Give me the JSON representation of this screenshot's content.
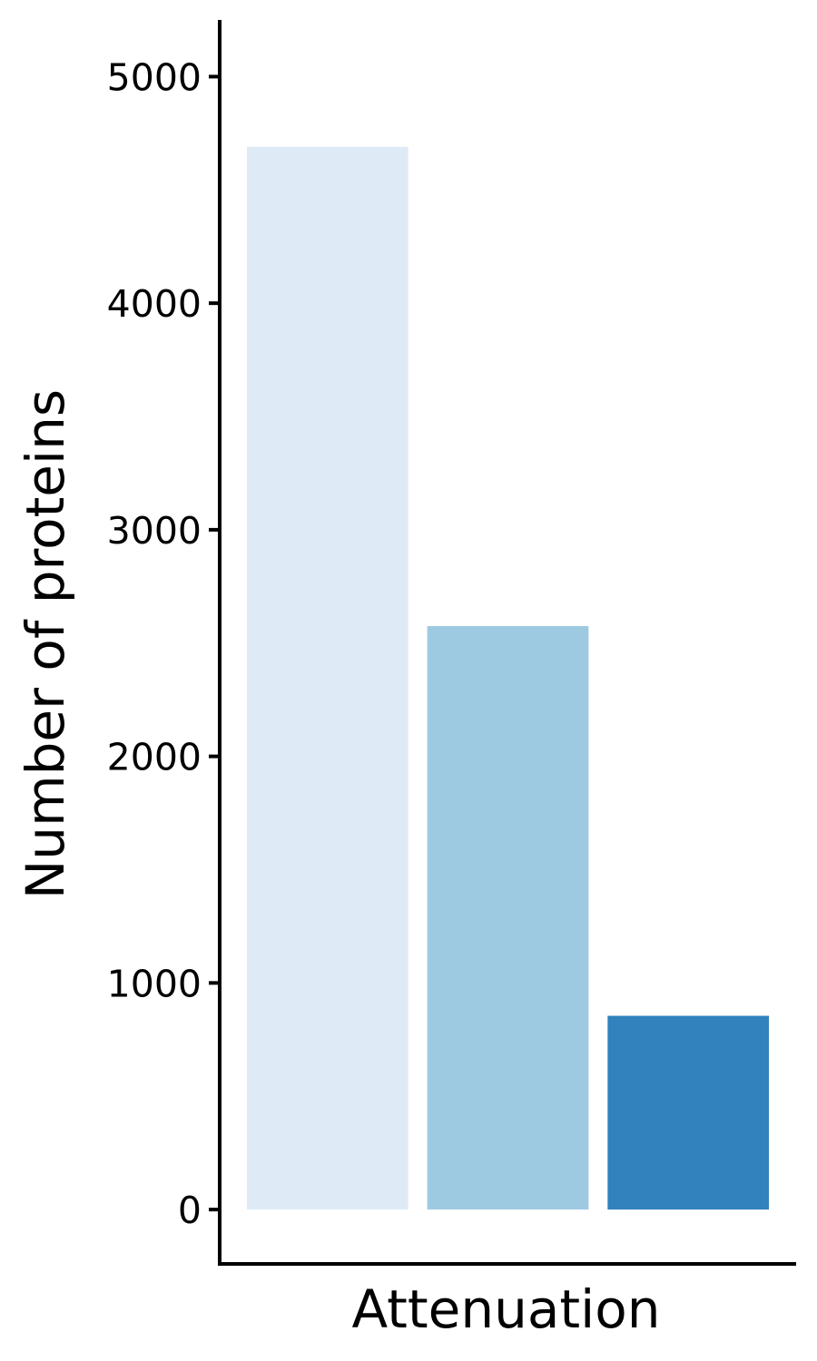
{
  "chart_data": {
    "type": "bar",
    "title": "",
    "xlabel": "Attenuation",
    "ylabel": "Number of proteins",
    "categories": [
      "",
      "",
      ""
    ],
    "values": [
      4690,
      2575,
      855
    ],
    "colors": [
      "#DEEBF7",
      "#9ECAE1",
      "#3182BD"
    ],
    "ylim": [
      -240,
      5250
    ],
    "yticks": [
      0,
      1000,
      2000,
      3000,
      4000,
      5000
    ],
    "ytick_labels": [
      "0",
      "1000",
      "2000",
      "3000",
      "4000",
      "5000"
    ],
    "grid": false,
    "legend": "none"
  }
}
